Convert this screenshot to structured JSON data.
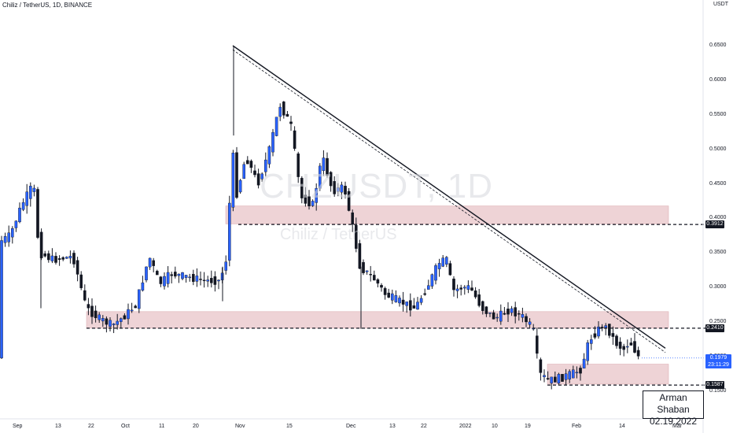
{
  "header": {
    "title": "Chiliz / TetherUS, 1D, BINANCE"
  },
  "watermark": {
    "symbol": "CHZUSDT, 1D",
    "name": "Chiliz / TetherUS"
  },
  "price_axis": {
    "unit": "USDT",
    "ticks": [
      "0.6500",
      "0.6000",
      "0.5500",
      "0.5000",
      "0.4500",
      "0.4000",
      "0.3500",
      "0.3000",
      "0.2500",
      "0.2000",
      "0.1500"
    ],
    "level_labels": [
      "0.3912",
      "0.2410",
      "0.1587"
    ],
    "current_price": "0.1979",
    "countdown": "23:11:29"
  },
  "time_axis": {
    "labels": [
      "Sep",
      "13",
      "22",
      "Oct",
      "11",
      "20",
      "Nov",
      "15",
      "Dec",
      "13",
      "22",
      "2022",
      "10",
      "19",
      "Feb",
      "14",
      "Mar"
    ]
  },
  "signature": {
    "name": "Arman Shaban",
    "date": "02.19.2022"
  },
  "colors": {
    "up": "#2962ff",
    "down": "#131722",
    "zone": "#e8c4c8",
    "price_label": "#2962ff"
  },
  "chart_data": {
    "type": "candlestick",
    "title": "Chiliz / TetherUS, 1D, BINANCE",
    "ylim": [
      0.13,
      0.66
    ],
    "horizontal_levels": [
      0.3912,
      0.241,
      0.1587
    ],
    "current_price": 0.1979,
    "zones": [
      {
        "from": 0.392,
        "to": 0.418
      },
      {
        "from": 0.241,
        "to": 0.265
      },
      {
        "from": 0.16,
        "to": 0.189
      }
    ],
    "trendline": {
      "from": {
        "date": "2021-11-01",
        "price": 0.65
      },
      "to": {
        "date": "2022-02-20",
        "price": 0.212
      }
    },
    "dashed_trendline": {
      "from": {
        "date": "2021-11-01",
        "price": 0.644
      },
      "to": {
        "date": "2022-02-20",
        "price": 0.206
      }
    },
    "grid": false
  }
}
